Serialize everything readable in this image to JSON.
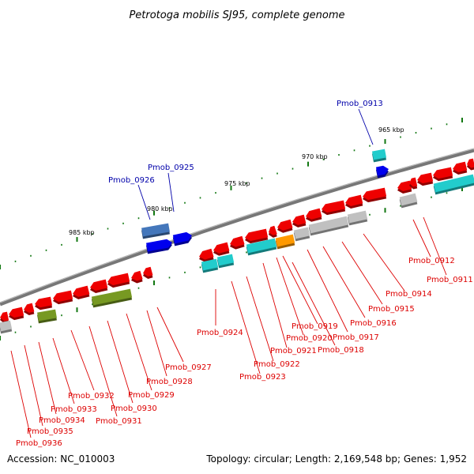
{
  "title": "Petrotoga mobilis SJ95, complete genome",
  "footer": {
    "accession": "Accession: NC_010003",
    "summary": "Topology: circular; Length: 2,169,548 bp; Genes: 1,952"
  },
  "colors": {
    "red": "#ee0000",
    "cyan": "#22cccc",
    "gray": "#c0c0c0",
    "orange": "#ff9900",
    "olive": "#779922",
    "blue": "#0000ee",
    "steel": "#4477bb",
    "label_red": "#dd0000",
    "label_blue": "#0000aa",
    "tick": "#117711",
    "backbone": "#777777"
  },
  "scale": [
    "965 kbp",
    "970 kbp",
    "975 kbp",
    "980 kbp",
    "985 kbp"
  ],
  "labels_top": [
    "Pmob_0913",
    "Pmob_0925",
    "Pmob_0926"
  ],
  "labels_bottom": [
    "Pmob_0911",
    "Pmob_0912",
    "Pmob_0914",
    "Pmob_0915",
    "Pmob_0916",
    "Pmob_0917",
    "Pmob_0918",
    "Pmob_0919",
    "Pmob_0920",
    "Pmob_0921",
    "Pmob_0922",
    "Pmob_0923",
    "Pmob_0924",
    "Pmob_0927",
    "Pmob_0928",
    "Pmob_0929",
    "Pmob_0930",
    "Pmob_0931",
    "Pmob_0932",
    "Pmob_0933",
    "Pmob_0934",
    "Pmob_0935",
    "Pmob_0936"
  ]
}
